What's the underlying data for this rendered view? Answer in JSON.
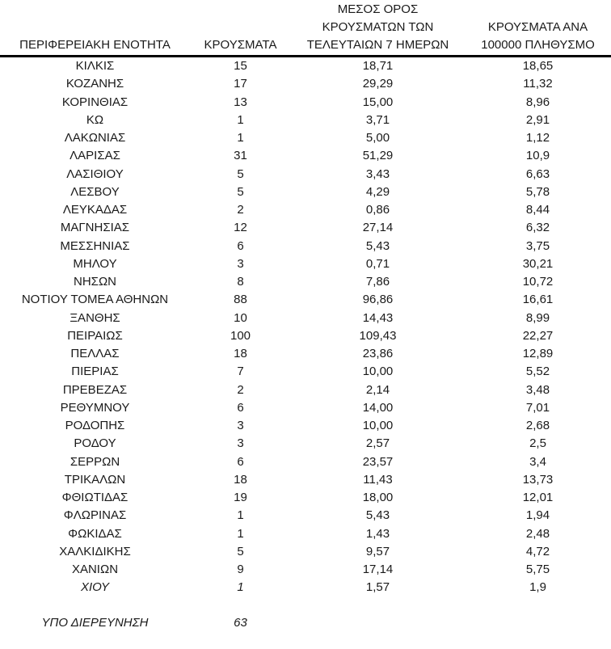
{
  "table": {
    "headers": [
      {
        "label": "ΠΕΡΙΦΕΡΕΙΑΚΗ ΕΝΟΤΗΤΑ"
      },
      {
        "label": "ΚΡΟΥΣΜΑΤΑ"
      },
      {
        "label": "ΜΕΣΟΣ ΟΡΟΣ\nΚΡΟΥΣΜΑΤΩΝ ΤΩΝ\nΤΕΛΕΥΤΑΙΩΝ 7 ΗΜΕΡΩΝ"
      },
      {
        "label": "ΚΡΟΥΣΜΑΤΑ ΑΝΑ\n100000 ΠΛΗΘΥΣΜΟ"
      }
    ],
    "rows": [
      {
        "name": "ΚΙΛΚΙΣ",
        "cases": "15",
        "avg7": "18,71",
        "per100k": "18,65"
      },
      {
        "name": "ΚΟΖΑΝΗΣ",
        "cases": "17",
        "avg7": "29,29",
        "per100k": "11,32"
      },
      {
        "name": "ΚΟΡΙΝΘΙΑΣ",
        "cases": "13",
        "avg7": "15,00",
        "per100k": "8,96"
      },
      {
        "name": "ΚΩ",
        "cases": "1",
        "avg7": "3,71",
        "per100k": "2,91"
      },
      {
        "name": "ΛΑΚΩΝΙΑΣ",
        "cases": "1",
        "avg7": "5,00",
        "per100k": "1,12"
      },
      {
        "name": "ΛΑΡΙΣΑΣ",
        "cases": "31",
        "avg7": "51,29",
        "per100k": "10,9"
      },
      {
        "name": "ΛΑΣΙΘΙΟΥ",
        "cases": "5",
        "avg7": "3,43",
        "per100k": "6,63"
      },
      {
        "name": "ΛΕΣΒΟΥ",
        "cases": "5",
        "avg7": "4,29",
        "per100k": "5,78"
      },
      {
        "name": "ΛΕΥΚΑΔΑΣ",
        "cases": "2",
        "avg7": "0,86",
        "per100k": "8,44"
      },
      {
        "name": "ΜΑΓΝΗΣΙΑΣ",
        "cases": "12",
        "avg7": "27,14",
        "per100k": "6,32"
      },
      {
        "name": "ΜΕΣΣΗΝΙΑΣ",
        "cases": "6",
        "avg7": "5,43",
        "per100k": "3,75"
      },
      {
        "name": "ΜΗΛΟΥ",
        "cases": "3",
        "avg7": "0,71",
        "per100k": "30,21"
      },
      {
        "name": "ΝΗΣΩΝ",
        "cases": "8",
        "avg7": "7,86",
        "per100k": "10,72"
      },
      {
        "name": "ΝΟΤΙΟΥ ΤΟΜΕΑ ΑΘΗΝΩΝ",
        "cases": "88",
        "avg7": "96,86",
        "per100k": "16,61"
      },
      {
        "name": "ΞΑΝΘΗΣ",
        "cases": "10",
        "avg7": "14,43",
        "per100k": "8,99"
      },
      {
        "name": "ΠΕΙΡΑΙΩΣ",
        "cases": "100",
        "avg7": "109,43",
        "per100k": "22,27"
      },
      {
        "name": "ΠΕΛΛΑΣ",
        "cases": "18",
        "avg7": "23,86",
        "per100k": "12,89"
      },
      {
        "name": "ΠΙΕΡΙΑΣ",
        "cases": "7",
        "avg7": "10,00",
        "per100k": "5,52"
      },
      {
        "name": "ΠΡΕΒΕΖΑΣ",
        "cases": "2",
        "avg7": "2,14",
        "per100k": "3,48"
      },
      {
        "name": "ΡΕΘΥΜΝΟΥ",
        "cases": "6",
        "avg7": "14,00",
        "per100k": "7,01"
      },
      {
        "name": "ΡΟΔΟΠΗΣ",
        "cases": "3",
        "avg7": "10,00",
        "per100k": "2,68"
      },
      {
        "name": "ΡΟΔΟΥ",
        "cases": "3",
        "avg7": "2,57",
        "per100k": "2,5"
      },
      {
        "name": "ΣΕΡΡΩΝ",
        "cases": "6",
        "avg7": "23,57",
        "per100k": "3,4"
      },
      {
        "name": "ΤΡΙΚΑΛΩΝ",
        "cases": "18",
        "avg7": "11,43",
        "per100k": "13,73"
      },
      {
        "name": "ΦΘΙΩΤΙΔΑΣ",
        "cases": "19",
        "avg7": "18,00",
        "per100k": "12,01"
      },
      {
        "name": "ΦΛΩΡΙΝΑΣ",
        "cases": "1",
        "avg7": "5,43",
        "per100k": "1,94"
      },
      {
        "name": "ΦΩΚΙΔΑΣ",
        "cases": "1",
        "avg7": "1,43",
        "per100k": "2,48"
      },
      {
        "name": "ΧΑΛΚΙΔΙΚΗΣ",
        "cases": "5",
        "avg7": "9,57",
        "per100k": "4,72"
      },
      {
        "name": "ΧΑΝΙΩΝ",
        "cases": "9",
        "avg7": "17,14",
        "per100k": "5,75"
      },
      {
        "name": "ΧΙΟΥ",
        "cases": "1",
        "avg7": "1,57",
        "per100k": "1,9",
        "italics": [
          true,
          true,
          false,
          false
        ]
      },
      {
        "name": "ΥΠΟ ΔΙΕΡΕΥΝΗΣΗ",
        "cases": "63",
        "avg7": "",
        "per100k": "",
        "italics": [
          true,
          true,
          false,
          false
        ],
        "spacer_before": true
      }
    ]
  },
  "colors": {
    "text": "#1a1a1a",
    "header_rule": "#000000",
    "background": "#ffffff"
  }
}
